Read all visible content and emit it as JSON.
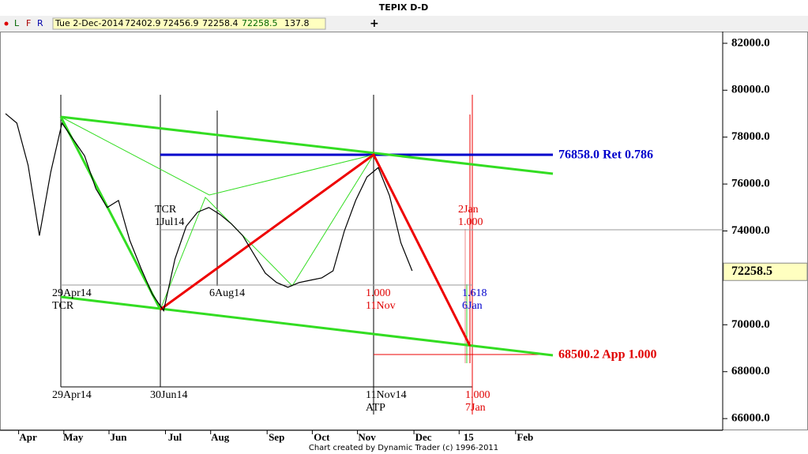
{
  "header": {
    "title": "TEPIX D-D",
    "toolbar": [
      "L",
      "F",
      "R"
    ],
    "date": "Tue 2-Dec-2014",
    "open": "72402.9",
    "high": "72456.9",
    "low": "72258.4",
    "close": "72258.5",
    "change": "137.8"
  },
  "chart_data": {
    "type": "line",
    "categories": [
      null,
      null,
      "Apr",
      null,
      null,
      null,
      "May",
      null,
      null,
      null,
      "Jun",
      null,
      null,
      null,
      null,
      "Jul",
      null,
      null,
      null,
      "Aug",
      null,
      null,
      null,
      null,
      "Sep",
      null,
      null,
      null,
      "Oct",
      null,
      null,
      null,
      "Nov",
      null,
      null,
      null,
      null,
      "Dec",
      null,
      null,
      null,
      "15",
      null,
      null,
      null,
      null,
      "Feb",
      null,
      null
    ],
    "series": [
      {
        "name": "TEPIX",
        "color": "#000000",
        "values": [
          79000,
          78600,
          76800,
          73800,
          76500,
          78600,
          77900,
          77200,
          75800,
          75000,
          75300,
          73600,
          72400,
          71300,
          70600,
          72800,
          74200,
          74800,
          75000,
          74700,
          74300,
          73800,
          73000,
          72200,
          71800,
          71600,
          71800,
          71900,
          72000,
          72300,
          74000,
          75300,
          76300,
          76700,
          75500,
          73500,
          72300,
          null,
          null,
          null,
          null,
          null,
          null,
          null,
          null,
          null,
          null,
          null,
          null
        ]
      }
    ],
    "ylim": [
      65500,
      82500
    ],
    "yticks": [
      {
        "value": 66000,
        "label": "66000.0"
      },
      {
        "value": 68000,
        "label": "68000.0"
      },
      {
        "value": 70000,
        "label": "70000.0"
      },
      {
        "value": 72000,
        "label": "72000.0"
      },
      {
        "value": 74000,
        "label": "74000.0"
      },
      {
        "value": 76000,
        "label": "76000.0"
      },
      {
        "value": 78000,
        "label": "78000.0"
      },
      {
        "value": 80000,
        "label": "80000.0"
      },
      {
        "value": 82000,
        "label": "82000.0"
      }
    ],
    "last_price": {
      "value": 72258.5,
      "label": "72258.5"
    },
    "annotations": {
      "ret": "76858.0 Ret 0.786",
      "app": "68500.2 App 1.000",
      "tcr1": "TCR",
      "tcr1d": "1Jul14",
      "a29": "29Apr14",
      "tcr2": "TCR",
      "aug": "6Aug14",
      "r1": "1.000",
      "r1d": "11Nov",
      "jan2": "2Jan",
      "jan2r": "1.000",
      "b1": "1.618",
      "b1d": "6Jan",
      "d29": "29Apr14",
      "d30": "30Jun14",
      "d11": "11Nov14",
      "atp": "ATP",
      "d7r": "1.000",
      "d7": "7Jan"
    }
  },
  "footer": "Chart created by Dynamic Trader  (c) 1996-2011"
}
